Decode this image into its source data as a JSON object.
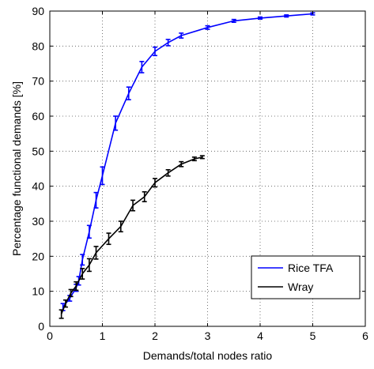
{
  "chart_data": {
    "type": "line",
    "title": "",
    "xlabel": "Demands/total nodes ratio",
    "ylabel": "Percentage functional demands [%]",
    "xlim": [
      0,
      6
    ],
    "ylim": [
      0,
      90
    ],
    "xticks": [
      0,
      1,
      2,
      3,
      4,
      5,
      6
    ],
    "yticks": [
      0,
      10,
      20,
      30,
      40,
      50,
      60,
      70,
      80,
      90
    ],
    "grid": true,
    "grid_style": "dotted",
    "legend_position": "bottom-right",
    "series": [
      {
        "name": "Rice TFA",
        "color": "#0000ff",
        "points": [
          {
            "x": 0.25,
            "y": 5.5,
            "err": 1.0
          },
          {
            "x": 0.38,
            "y": 8.0,
            "err": 0.8
          },
          {
            "x": 0.5,
            "y": 11.0,
            "err": 1.0
          },
          {
            "x": 0.55,
            "y": 13.0,
            "err": 1.2
          },
          {
            "x": 0.62,
            "y": 19.0,
            "err": 1.5
          },
          {
            "x": 0.75,
            "y": 27.0,
            "err": 1.8
          },
          {
            "x": 0.88,
            "y": 36.0,
            "err": 2.2
          },
          {
            "x": 1.0,
            "y": 43.0,
            "err": 2.5
          },
          {
            "x": 1.25,
            "y": 58.0,
            "err": 2.0
          },
          {
            "x": 1.5,
            "y": 66.5,
            "err": 1.8
          },
          {
            "x": 1.75,
            "y": 74.0,
            "err": 1.6
          },
          {
            "x": 2.0,
            "y": 78.5,
            "err": 1.2
          },
          {
            "x": 2.25,
            "y": 81.0,
            "err": 0.9
          },
          {
            "x": 2.5,
            "y": 83.0,
            "err": 0.7
          },
          {
            "x": 3.0,
            "y": 85.3,
            "err": 0.5
          },
          {
            "x": 3.5,
            "y": 87.2,
            "err": 0.4
          },
          {
            "x": 4.0,
            "y": 88.0,
            "err": 0.3
          },
          {
            "x": 4.5,
            "y": 88.6,
            "err": 0.3
          },
          {
            "x": 5.0,
            "y": 89.2,
            "err": 0.3
          }
        ]
      },
      {
        "name": "Wray",
        "color": "#000000",
        "points": [
          {
            "x": 0.22,
            "y": 3.5,
            "err": 1.2
          },
          {
            "x": 0.3,
            "y": 6.5,
            "err": 1.0
          },
          {
            "x": 0.4,
            "y": 9.5,
            "err": 1.0
          },
          {
            "x": 0.5,
            "y": 11.5,
            "err": 1.2
          },
          {
            "x": 0.62,
            "y": 15.0,
            "err": 1.5
          },
          {
            "x": 0.75,
            "y": 17.5,
            "err": 1.8
          },
          {
            "x": 0.88,
            "y": 21.0,
            "err": 1.8
          },
          {
            "x": 1.12,
            "y": 25.0,
            "err": 1.6
          },
          {
            "x": 1.35,
            "y": 28.5,
            "err": 1.5
          },
          {
            "x": 1.58,
            "y": 34.5,
            "err": 1.5
          },
          {
            "x": 1.8,
            "y": 37.0,
            "err": 1.4
          },
          {
            "x": 2.0,
            "y": 41.0,
            "err": 1.2
          },
          {
            "x": 2.25,
            "y": 43.8,
            "err": 0.9
          },
          {
            "x": 2.5,
            "y": 46.3,
            "err": 0.7
          },
          {
            "x": 2.75,
            "y": 47.8,
            "err": 0.5
          },
          {
            "x": 2.9,
            "y": 48.3,
            "err": 0.4
          }
        ]
      }
    ]
  }
}
